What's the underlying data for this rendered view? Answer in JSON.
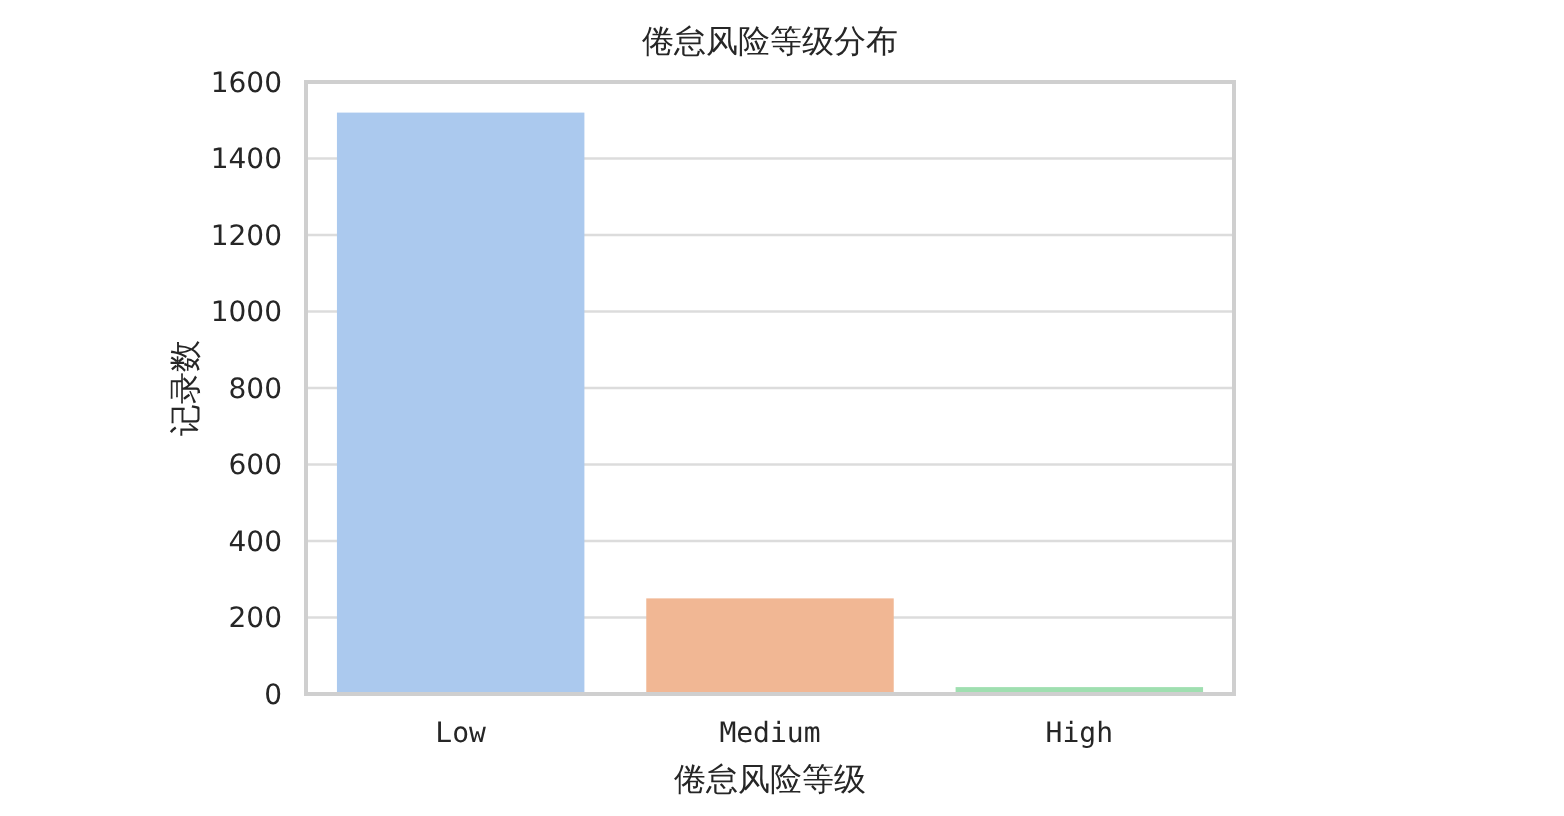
{
  "chart_data": {
    "type": "bar",
    "title": "倦怠风险等级分布",
    "xlabel": "倦怠风险等级",
    "ylabel": "记录数",
    "categories": [
      "Low",
      "Medium",
      "High"
    ],
    "values": [
      1520,
      250,
      18
    ],
    "colors": [
      "#abc9ee",
      "#f1b794",
      "#9fdfb0"
    ],
    "ylim": [
      0,
      1600
    ],
    "yticks": [
      0,
      200,
      400,
      600,
      800,
      1000,
      1200,
      1400,
      1600
    ],
    "grid": "y"
  }
}
